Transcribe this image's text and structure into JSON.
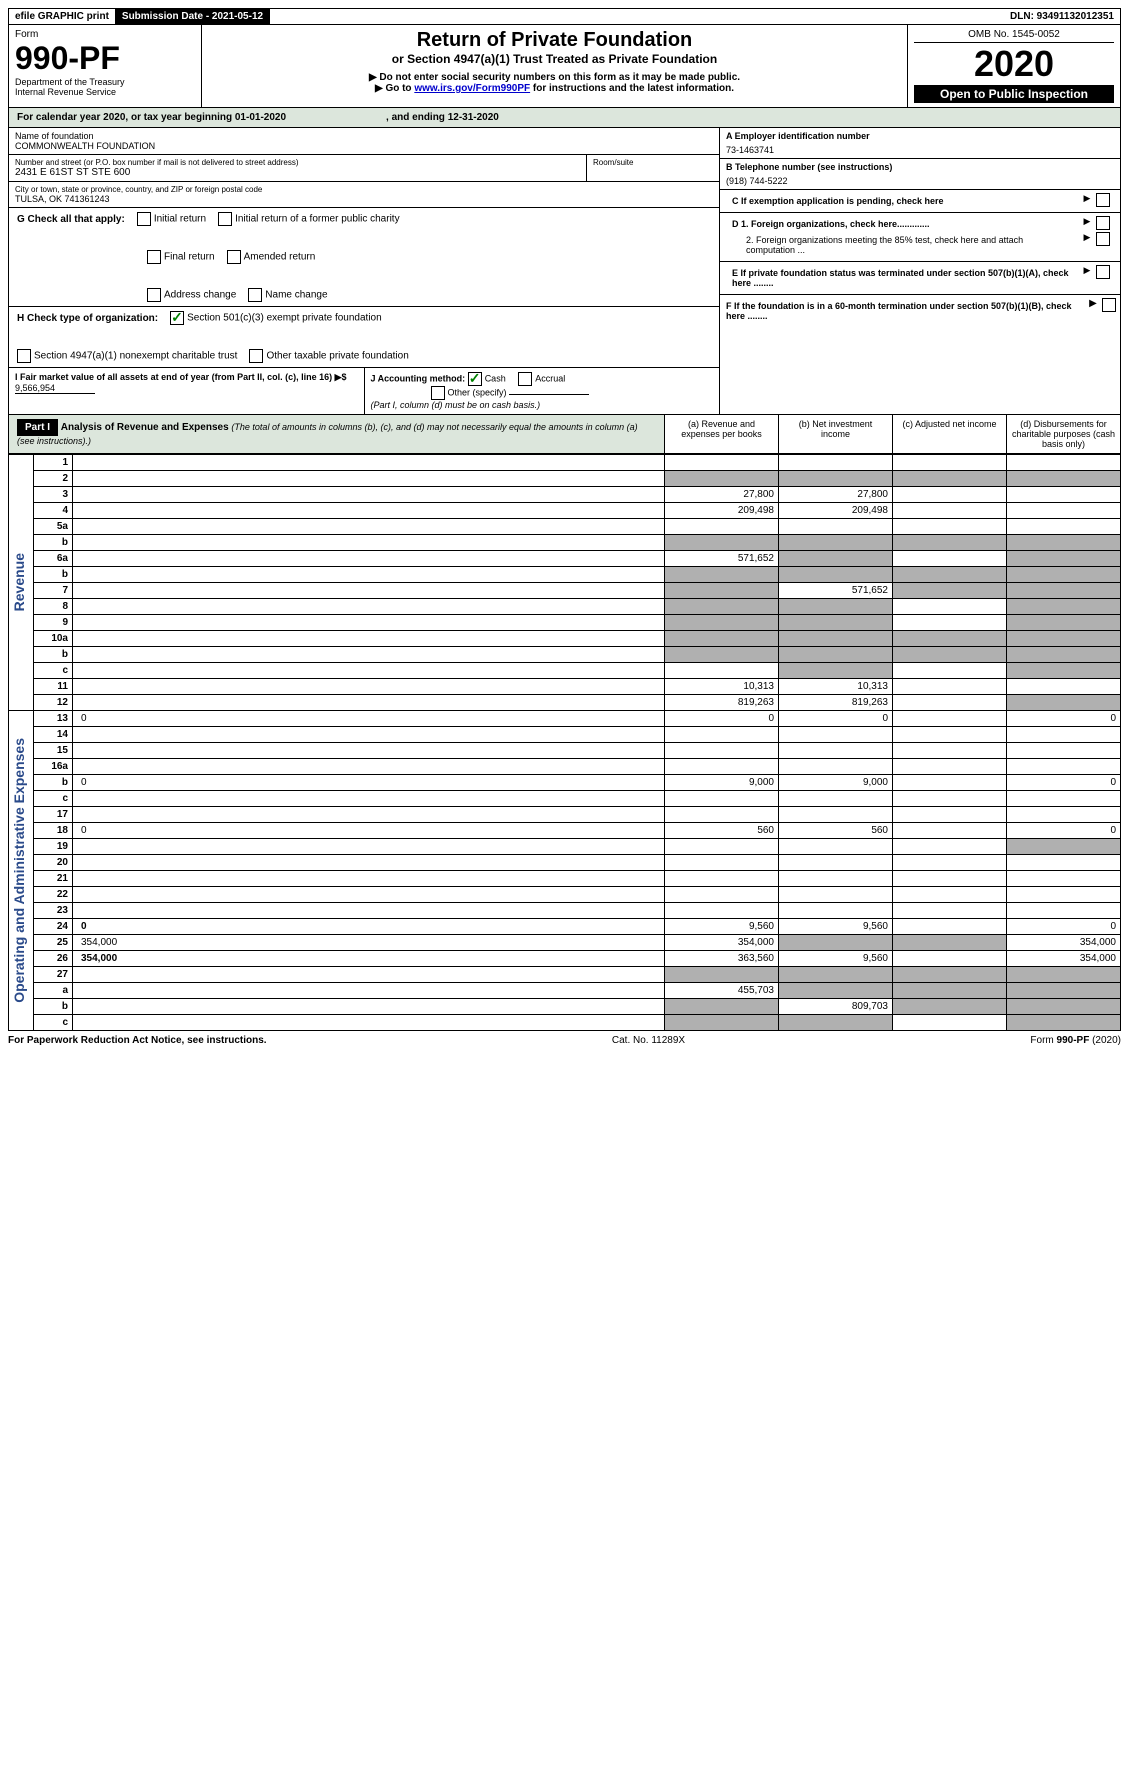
{
  "topbar": {
    "efile": "efile GRAPHIC print",
    "submission": "Submission Date - 2021-05-12",
    "dln": "DLN: 93491132012351"
  },
  "header": {
    "form_label": "Form",
    "form_num": "990-PF",
    "dept": "Department of the Treasury",
    "irs": "Internal Revenue Service",
    "title": "Return of Private Foundation",
    "subtitle": "or Section 4947(a)(1) Trust Treated as Private Foundation",
    "note1": "▶ Do not enter social security numbers on this form as it may be made public.",
    "note2_pre": "▶ Go to ",
    "note2_link": "www.irs.gov/Form990PF",
    "note2_post": " for instructions and the latest information.",
    "omb": "OMB No. 1545-0052",
    "year": "2020",
    "open": "Open to Public Inspection"
  },
  "calyear": {
    "text_pre": "For calendar year 2020, or tax year beginning ",
    "begin": "01-01-2020",
    "mid": ", and ending ",
    "end": "12-31-2020"
  },
  "info": {
    "name_label": "Name of foundation",
    "name": "COMMONWEALTH FOUNDATION",
    "address_label": "Number and street (or P.O. box number if mail is not delivered to street address)",
    "address": "2431 E 61ST ST STE 600",
    "room_label": "Room/suite",
    "room": "",
    "city_label": "City or town, state or province, country, and ZIP or foreign postal code",
    "city": "TULSA, OK  741361243",
    "a_label": "A Employer identification number",
    "a_val": "73-1463741",
    "b_label": "B Telephone number (see instructions)",
    "b_val": "(918) 744-5222",
    "c_label": "C If exemption application is pending, check here",
    "d1_label": "D 1. Foreign organizations, check here.............",
    "d2_label": "2. Foreign organizations meeting the 85% test, check here and attach computation ...",
    "e_label": "E If private foundation status was terminated under section 507(b)(1)(A), check here ........",
    "f_label": "F If the foundation is in a 60-month termination under section 507(b)(1)(B), check here ........"
  },
  "g": {
    "label": "G Check all that apply:",
    "opts": [
      "Initial return",
      "Initial return of a former public charity",
      "Final return",
      "Amended return",
      "Address change",
      "Name change"
    ]
  },
  "h": {
    "label": "H Check type of organization:",
    "opt1": "Section 501(c)(3) exempt private foundation",
    "opt2": "Section 4947(a)(1) nonexempt charitable trust",
    "opt3": "Other taxable private foundation"
  },
  "i": {
    "label": "I Fair market value of all assets at end of year (from Part II, col. (c), line 16) ▶$",
    "val": "9,566,954"
  },
  "j": {
    "label": "J Accounting method:",
    "cash": "Cash",
    "accrual": "Accrual",
    "other": "Other (specify)",
    "note": "(Part I, column (d) must be on cash basis.)"
  },
  "part1": {
    "label": "Part I",
    "title": "Analysis of Revenue and Expenses",
    "title_note": "(The total of amounts in columns (b), (c), and (d) may not necessarily equal the amounts in column (a) (see instructions).)",
    "col_a": "(a) Revenue and expenses per books",
    "col_b": "(b) Net investment income",
    "col_c": "(c) Adjusted net income",
    "col_d": "(d) Disbursements for charitable purposes (cash basis only)"
  },
  "sidelabels": {
    "revenue": "Revenue",
    "expenses": "Operating and Administrative Expenses"
  },
  "rows": [
    {
      "n": "1",
      "d": "",
      "a": "",
      "b": "",
      "c": "",
      "grey_c": false,
      "grey_d": false
    },
    {
      "n": "2",
      "d": "",
      "a": "",
      "b": "",
      "c": "",
      "grey_a": true,
      "grey_b": true,
      "grey_c": true,
      "grey_d": true,
      "bold_not": true
    },
    {
      "n": "3",
      "d": "",
      "a": "27,800",
      "b": "27,800",
      "c": ""
    },
    {
      "n": "4",
      "d": "",
      "a": "209,498",
      "b": "209,498",
      "c": ""
    },
    {
      "n": "5a",
      "d": "",
      "a": "",
      "b": "",
      "c": ""
    },
    {
      "n": "b",
      "d": "",
      "a": "",
      "b": "",
      "c": "",
      "grey_a": true,
      "grey_b": true,
      "grey_c": true,
      "grey_d": true
    },
    {
      "n": "6a",
      "d": "",
      "a": "571,652",
      "b": "",
      "c": "",
      "grey_b": true,
      "grey_d": true
    },
    {
      "n": "b",
      "d": "",
      "a": "",
      "b": "",
      "c": "",
      "grey_a": true,
      "grey_b": true,
      "grey_c": true,
      "grey_d": true
    },
    {
      "n": "7",
      "d": "",
      "a": "",
      "b": "571,652",
      "c": "",
      "grey_a": true,
      "grey_c": true,
      "grey_d": true
    },
    {
      "n": "8",
      "d": "",
      "a": "",
      "b": "",
      "c": "",
      "grey_a": true,
      "grey_b": true,
      "grey_d": true
    },
    {
      "n": "9",
      "d": "",
      "a": "",
      "b": "",
      "c": "",
      "grey_a": true,
      "grey_b": true,
      "grey_d": true
    },
    {
      "n": "10a",
      "d": "",
      "a": "",
      "b": "",
      "c": "",
      "grey_a": true,
      "grey_b": true,
      "grey_c": true,
      "grey_d": true
    },
    {
      "n": "b",
      "d": "",
      "a": "",
      "b": "",
      "c": "",
      "grey_a": true,
      "grey_b": true,
      "grey_c": true,
      "grey_d": true
    },
    {
      "n": "c",
      "d": "",
      "a": "",
      "b": "",
      "c": "",
      "grey_b": true,
      "grey_d": true
    },
    {
      "n": "11",
      "d": "",
      "a": "10,313",
      "b": "10,313",
      "c": ""
    },
    {
      "n": "12",
      "d": "",
      "a": "819,263",
      "b": "819,263",
      "c": "",
      "bold": true,
      "grey_d": true
    },
    {
      "n": "13",
      "d": "0",
      "a": "0",
      "b": "0",
      "c": ""
    },
    {
      "n": "14",
      "d": "",
      "a": "",
      "b": "",
      "c": ""
    },
    {
      "n": "15",
      "d": "",
      "a": "",
      "b": "",
      "c": ""
    },
    {
      "n": "16a",
      "d": "",
      "a": "",
      "b": "",
      "c": ""
    },
    {
      "n": "b",
      "d": "0",
      "a": "9,000",
      "b": "9,000",
      "c": ""
    },
    {
      "n": "c",
      "d": "",
      "a": "",
      "b": "",
      "c": ""
    },
    {
      "n": "17",
      "d": "",
      "a": "",
      "b": "",
      "c": ""
    },
    {
      "n": "18",
      "d": "0",
      "a": "560",
      "b": "560",
      "c": ""
    },
    {
      "n": "19",
      "d": "",
      "a": "",
      "b": "",
      "c": "",
      "grey_d": true
    },
    {
      "n": "20",
      "d": "",
      "a": "",
      "b": "",
      "c": ""
    },
    {
      "n": "21",
      "d": "",
      "a": "",
      "b": "",
      "c": ""
    },
    {
      "n": "22",
      "d": "",
      "a": "",
      "b": "",
      "c": ""
    },
    {
      "n": "23",
      "d": "",
      "a": "",
      "b": "",
      "c": ""
    },
    {
      "n": "24",
      "d": "0",
      "a": "9,560",
      "b": "9,560",
      "c": "",
      "bold": true
    },
    {
      "n": "25",
      "d": "354,000",
      "a": "354,000",
      "b": "",
      "c": "",
      "grey_b": true,
      "grey_c": true
    },
    {
      "n": "26",
      "d": "354,000",
      "a": "363,560",
      "b": "9,560",
      "c": "",
      "bold": true
    },
    {
      "n": "27",
      "d": "",
      "a": "",
      "b": "",
      "c": "",
      "grey_a": true,
      "grey_b": true,
      "grey_c": true,
      "grey_d": true
    },
    {
      "n": "a",
      "d": "",
      "a": "455,703",
      "b": "",
      "c": "",
      "bold": true,
      "grey_b": true,
      "grey_c": true,
      "grey_d": true
    },
    {
      "n": "b",
      "d": "",
      "a": "",
      "b": "809,703",
      "c": "",
      "bold": true,
      "grey_a": true,
      "grey_c": true,
      "grey_d": true
    },
    {
      "n": "c",
      "d": "",
      "a": "",
      "b": "",
      "c": "",
      "bold": true,
      "grey_a": true,
      "grey_b": true,
      "grey_d": true
    }
  ],
  "footer": {
    "left": "For Paperwork Reduction Act Notice, see instructions.",
    "center": "Cat. No. 11289X",
    "right": "Form 990-PF (2020)"
  }
}
